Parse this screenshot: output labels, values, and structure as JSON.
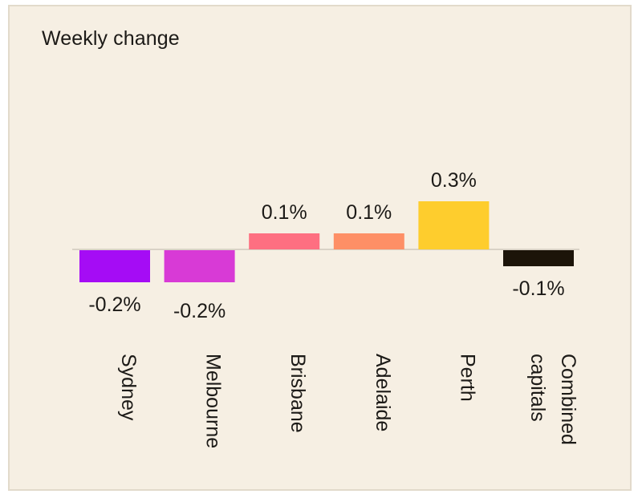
{
  "chart_data": {
    "type": "bar",
    "title": "Weekly change",
    "categories": [
      "Sydney",
      "Melbourne",
      "Brisbane",
      "Adelaide",
      "Perth",
      "Combined capitals"
    ],
    "category_lines": [
      [
        "Sydney"
      ],
      [
        "Melbourne"
      ],
      [
        "Brisbane"
      ],
      [
        "Adelaide"
      ],
      [
        "Perth"
      ],
      [
        "Combined",
        "capitals"
      ]
    ],
    "values": [
      -0.2,
      -0.2,
      0.1,
      0.1,
      0.3,
      -0.1
    ],
    "data_labels": [
      "-0.2%",
      "-0.2%",
      "0.1%",
      "0.1%",
      "0.3%",
      "-0.1%"
    ],
    "colors": [
      "#a50cf5",
      "#d83ad6",
      "#fe6f81",
      "#fe8f66",
      "#fecd2d",
      "#1c1409"
    ],
    "unit": "%",
    "grid": false,
    "legend": "none"
  }
}
